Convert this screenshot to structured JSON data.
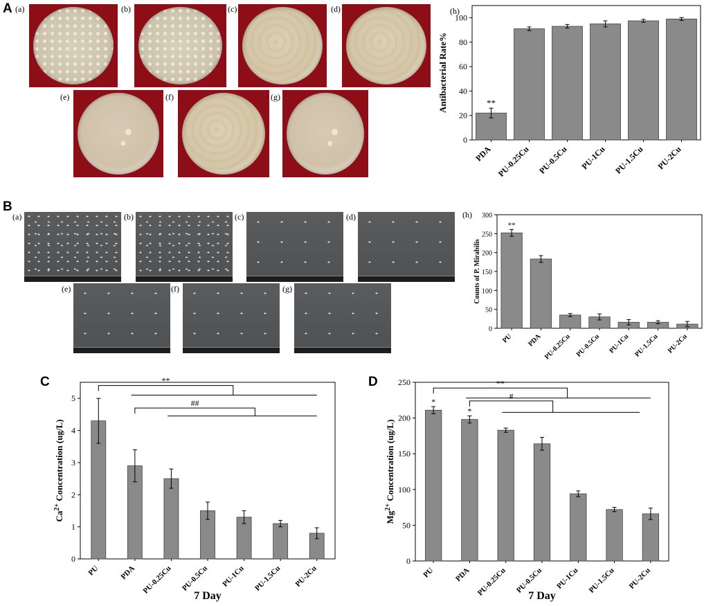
{
  "panels": {
    "A": {
      "letter": "A",
      "photo_labels": [
        "(a)",
        "(b)",
        "(c)",
        "(d)",
        "(e)",
        "(f)",
        "(g)"
      ]
    },
    "B": {
      "letter": "B",
      "sem_labels": [
        "(a)",
        "(b)",
        "(c)",
        "(d)",
        "(e)",
        "(f)",
        "(g)"
      ]
    },
    "C": {
      "letter": "C"
    },
    "D": {
      "letter": "D"
    }
  },
  "chart_data": [
    {
      "id": "A-h",
      "type": "bar",
      "panel_label": "(h)",
      "categories": [
        "PDA",
        "PU-0.25Cu",
        "PU-0.5Cu",
        "PU-1Cu",
        "PU-1.5Cu",
        "PU-2Cu"
      ],
      "values": [
        22,
        91,
        93,
        95,
        97.5,
        99
      ],
      "errors": [
        4,
        1.5,
        1.5,
        2.5,
        1.2,
        1.2
      ],
      "annotations": [
        "**",
        "",
        "",
        "",
        "",
        ""
      ],
      "ylabel": "Antibacterial Rate%",
      "xlabel": "",
      "ylim": [
        0,
        110
      ],
      "yticks": [
        0,
        20,
        40,
        60,
        80,
        100
      ],
      "bar_color": "#8a8a8a"
    },
    {
      "id": "B-h",
      "type": "bar",
      "panel_label": "(h)",
      "categories": [
        "PU",
        "PDA",
        "PU-0.25Cu",
        "PU-0.5Cu",
        "PU-1Cu",
        "PU-1.5Cu",
        "PU-2Cu"
      ],
      "values": [
        252,
        183,
        35,
        30,
        16,
        16,
        11
      ],
      "errors": [
        9,
        9,
        4,
        8,
        7,
        4,
        7
      ],
      "annotations": [
        "**",
        "",
        "",
        "",
        "",
        "",
        ""
      ],
      "ylabel": "Counts of P. Mirabilis",
      "xlabel": "",
      "ylim": [
        0,
        300
      ],
      "yticks": [
        0,
        50,
        100,
        150,
        200,
        250,
        300
      ],
      "bar_color": "#8a8a8a"
    },
    {
      "id": "C",
      "type": "bar",
      "categories": [
        "PU",
        "PDA",
        "PU-0.25Cu",
        "PU-0.5Cu",
        "PU-1Cu",
        "PU-1.5Cu",
        "PU-2Cu"
      ],
      "values": [
        4.3,
        2.9,
        2.5,
        1.5,
        1.3,
        1.1,
        0.8
      ],
      "errors": [
        0.7,
        0.5,
        0.3,
        0.27,
        0.2,
        0.1,
        0.17
      ],
      "annotations": [
        "",
        "",
        "",
        "",
        "",
        "",
        ""
      ],
      "ylabel_main": "Ca",
      "ylabel_sup": "2+",
      "ylabel_rest": " Concentration (ug/L)",
      "xlabel": "7 Day",
      "ylim": [
        0,
        5.5
      ],
      "yticks": [
        0,
        1,
        2,
        3,
        4,
        5
      ],
      "brackets": [
        {
          "label": "**",
          "from": 0,
          "to": 6,
          "mid": 3.7,
          "level": 5.4,
          "branch": 5.1
        },
        {
          "label": "##",
          "from": 1,
          "to": 6,
          "mid": 4.3,
          "level": 4.7,
          "branch": 4.45
        }
      ],
      "bar_color": "#8a8a8a"
    },
    {
      "id": "D",
      "type": "bar",
      "categories": [
        "PU",
        "PDA",
        "PU-0.25Cu",
        "PU-0.5Cu",
        "PU-1Cu",
        "PU-1.5Cu",
        "PU-2Cu"
      ],
      "values": [
        211,
        198,
        183,
        164,
        94,
        72,
        66
      ],
      "errors": [
        5,
        5,
        3,
        9,
        4,
        3,
        8
      ],
      "annotations": [
        "*",
        "*",
        "",
        "",
        "",
        "",
        ""
      ],
      "ylabel_main": "Mg",
      "ylabel_sup": "2+",
      "ylabel_rest": " Concentration (ug/L)",
      "xlabel": "7 Day",
      "ylim": [
        0,
        250
      ],
      "yticks": [
        0,
        50,
        100,
        150,
        200,
        250
      ],
      "brackets": [
        {
          "label": "**",
          "from": 0,
          "to": 6,
          "mid": 3.7,
          "level": 242,
          "branch": 228
        },
        {
          "label": "#",
          "from": 1,
          "to": 5.7,
          "mid": 3.3,
          "level": 224,
          "branch": 208
        }
      ],
      "bar_color": "#8a8a8a"
    }
  ]
}
